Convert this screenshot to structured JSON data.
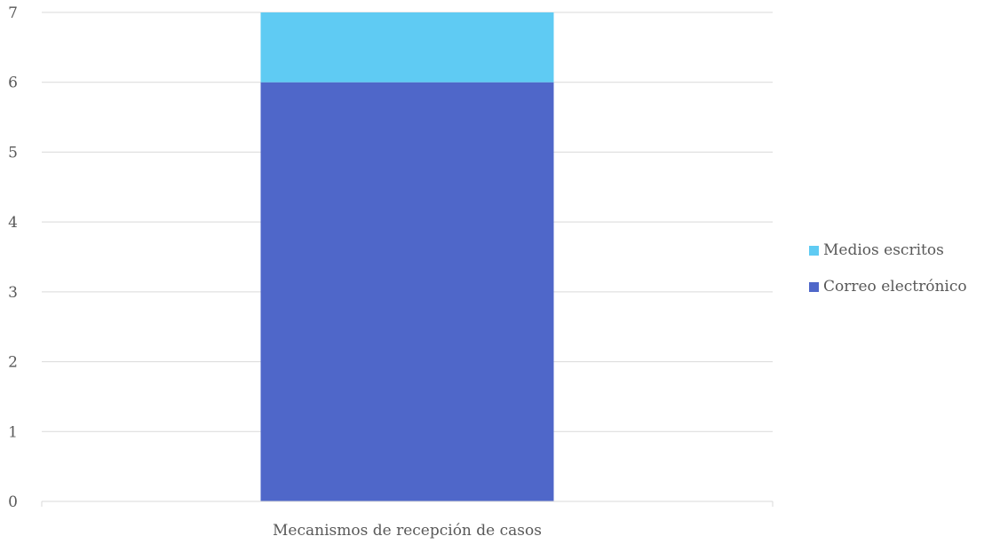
{
  "chart_data": {
    "type": "bar",
    "stacked": true,
    "categories": [
      "Mecanismos de recepción de casos"
    ],
    "series": [
      {
        "name": "Correo electrónico",
        "values": [
          6
        ],
        "color": "#4F67C9"
      },
      {
        "name": "Medios escritos",
        "values": [
          1
        ],
        "color": "#5FCBF3"
      }
    ],
    "title": "",
    "xlabel": "",
    "ylabel": "",
    "ylim": [
      0,
      7
    ],
    "yticks": [
      0,
      1,
      2,
      3,
      4,
      5,
      6,
      7
    ],
    "grid": true,
    "legend_placement": "right"
  }
}
